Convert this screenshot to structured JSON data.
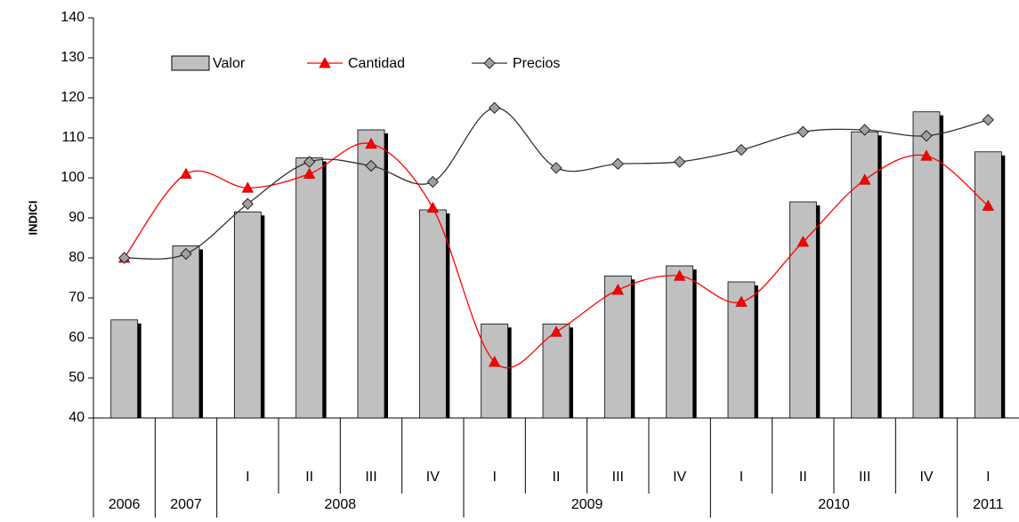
{
  "chart_data": {
    "type": "bar_line",
    "y_label": "INDICI",
    "categories": [
      null,
      null,
      "I",
      "II",
      "III",
      "IV",
      "I",
      "II",
      "III",
      "IV",
      "I",
      "II",
      "III",
      "IV",
      "I"
    ],
    "category_groups": [
      "2006",
      "2007",
      "2008",
      "2009",
      "2010",
      "2011"
    ],
    "group_sizes": [
      1,
      1,
      4,
      4,
      4,
      1
    ],
    "series": [
      {
        "name": "Valor",
        "kind": "bar",
        "color": "#c0c0c0",
        "values": [
          64.5,
          83,
          91.5,
          105,
          112,
          92,
          63.5,
          63.5,
          75.5,
          78,
          74,
          94,
          111.5,
          116.5,
          106.5
        ]
      },
      {
        "name": "Cantidad",
        "kind": "line",
        "color": "#ff0000",
        "marker": "triangle",
        "values": [
          80,
          101,
          97.5,
          101,
          108.5,
          92.5,
          54,
          61.5,
          72,
          75.5,
          69,
          84,
          99.5,
          105.5,
          93
        ]
      },
      {
        "name": "Precios",
        "kind": "line",
        "color": "#333333",
        "marker": "diamond",
        "values": [
          80,
          81,
          93.5,
          104,
          103,
          99,
          117.5,
          102.5,
          103.5,
          104,
          107,
          111.5,
          112,
          110.5,
          114.5
        ]
      }
    ],
    "ylim": [
      40,
      140
    ],
    "yticks": [
      40,
      50,
      60,
      70,
      80,
      90,
      100,
      110,
      120,
      130,
      140
    ]
  }
}
